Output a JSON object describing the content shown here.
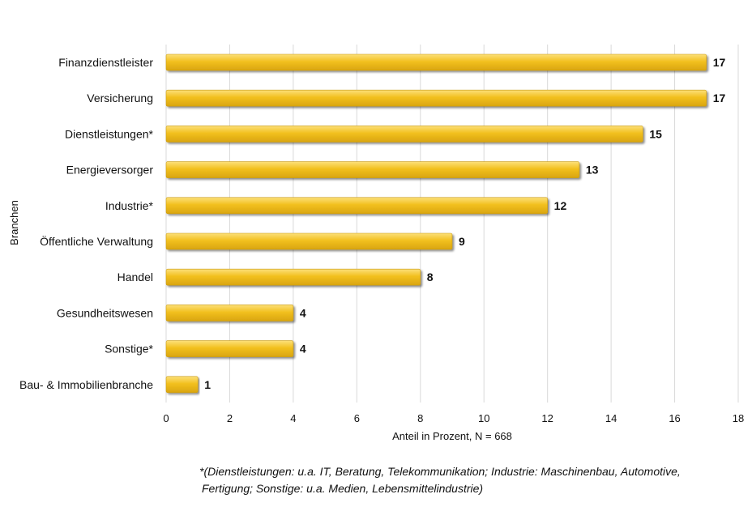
{
  "chart_data": {
    "type": "bar",
    "orientation": "horizontal",
    "categories": [
      "Finanzdienstleister",
      "Versicherung",
      "Dienstleistungen*",
      "Energieversorger",
      "Industrie*",
      "Öffentliche Verwaltung",
      "Handel",
      "Gesundheitswesen",
      "Sonstige*",
      "Bau- & Immobilienbranche"
    ],
    "values": [
      17,
      17,
      15,
      13,
      12,
      9,
      8,
      4,
      4,
      1
    ],
    "value_labels": [
      "17",
      "17",
      "15",
      "13",
      "12",
      "9",
      "8",
      "4",
      "4",
      "1"
    ],
    "xlabel": "Anteil in Prozent, N = 668",
    "ylabel": "Branchen",
    "xlim": [
      0,
      18
    ],
    "xticks": [
      "0",
      "2",
      "4",
      "6",
      "8",
      "10",
      "12",
      "14",
      "16",
      "18"
    ],
    "grid": "vertical",
    "bar_color": "#F2C01E"
  },
  "footnote": {
    "line1": "*(Dienstleistungen: u.a. IT, Beratung, Telekommunikation; Industrie: Maschinenbau, Automotive,",
    "line2": "Fertigung; Sonstige: u.a. Medien,   Lebensmittelindustrie)"
  }
}
